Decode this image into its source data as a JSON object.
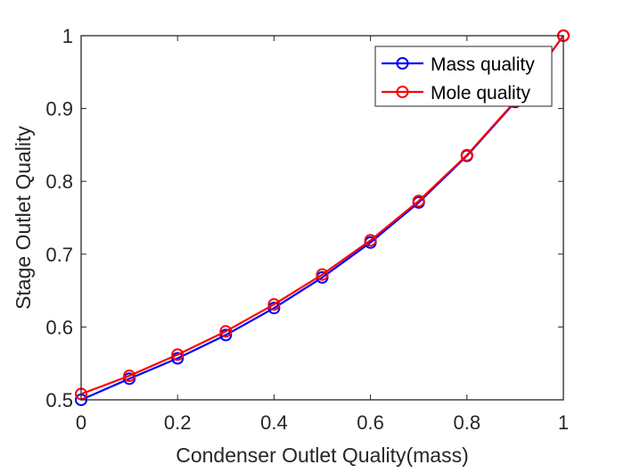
{
  "chart_data": {
    "type": "line",
    "title": "",
    "xlabel": "Condenser Outlet Quality(mass)",
    "ylabel": "Stage Outlet Quality",
    "xlim": [
      0,
      1
    ],
    "ylim": [
      0.5,
      1
    ],
    "xticks": [
      0,
      0.2,
      0.4,
      0.6,
      0.8,
      1
    ],
    "xtick_labels": [
      "0",
      "0.2",
      "0.4",
      "0.6",
      "0.8",
      "1"
    ],
    "yticks": [
      0.5,
      0.6,
      0.7,
      0.8,
      0.9,
      1
    ],
    "ytick_labels": [
      "0.5",
      "0.6",
      "0.7",
      "0.8",
      "0.9",
      "1"
    ],
    "grid": false,
    "legend_position": "top-right",
    "x": [
      0,
      0.1,
      0.2,
      0.3,
      0.4,
      0.5,
      0.6,
      0.7,
      0.8,
      0.9,
      1.0
    ],
    "series": [
      {
        "name": "Mass quality",
        "color": "#0000ff",
        "marker": "circle",
        "values": [
          0.5,
          0.529,
          0.557,
          0.589,
          0.626,
          0.668,
          0.716,
          0.771,
          0.835,
          0.909,
          1.0
        ]
      },
      {
        "name": "Mole quality",
        "color": "#ff0000",
        "marker": "circle",
        "values": [
          0.508,
          0.533,
          0.562,
          0.594,
          0.631,
          0.672,
          0.719,
          0.773,
          0.836,
          0.91,
          1.0
        ]
      }
    ]
  }
}
